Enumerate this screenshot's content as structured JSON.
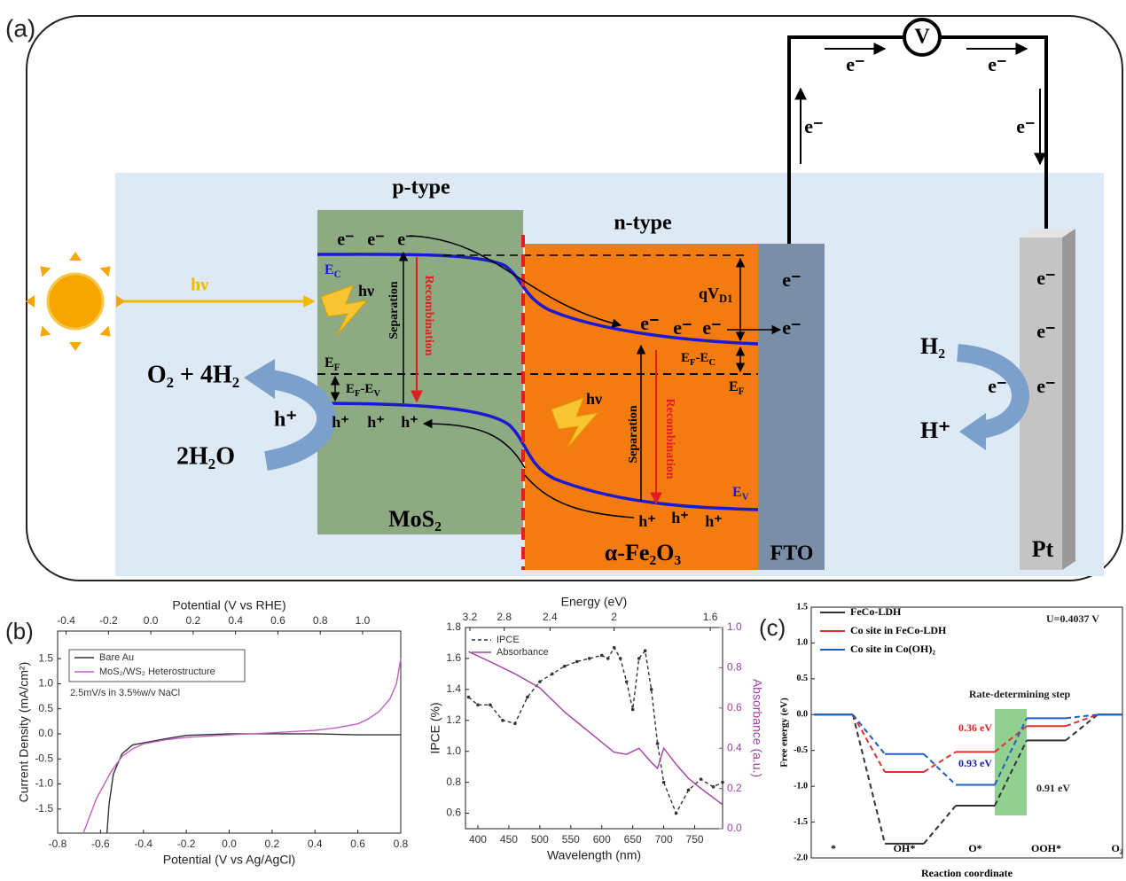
{
  "panel_a": {
    "label": "(a)",
    "voltmeter": "V",
    "labels": [
      "p-type",
      "n-type",
      "MoS₂",
      "α-Fe₂O₃",
      "FTO",
      "Pt",
      "hν",
      "hν",
      "hν",
      "O₂ + 4H₂",
      "h⁺",
      "2H₂O",
      "H₂",
      "H⁺",
      "Separation",
      "Recombination",
      "Separation",
      "Recombination",
      "e⁻",
      "e⁻",
      "e⁻",
      "e⁻",
      "e⁻",
      "e⁻",
      "e⁻",
      "e⁻",
      "e⁻",
      "e⁻",
      "e⁻",
      "e⁻",
      "e⁻",
      "e⁻",
      "e⁻",
      "e⁻",
      "h⁺",
      "h⁺",
      "h⁺",
      "h⁺",
      "h⁺",
      "h⁺"
    ],
    "sub_labels": [
      [
        "E",
        "C"
      ],
      [
        "E",
        "F"
      ],
      [
        "E",
        "F",
        "-E",
        "V"
      ],
      [
        "qV",
        "D1"
      ],
      [
        "E",
        "F",
        "-E",
        "C"
      ],
      [
        "E",
        "F"
      ],
      [
        "E",
        "V"
      ]
    ]
  },
  "chart_data": [
    {
      "type": "line",
      "panel_label": "(b)",
      "x_label": "Potential (V vs Ag/AgCl)",
      "x2_label": "Potential (V vs RHE)",
      "y_label": "Current Density (mA/cm²)",
      "annotation": "2.5mV/s in 3.5%w/v NaCl",
      "xlim": [
        -0.8,
        0.8
      ],
      "xticks": [
        -0.8,
        -0.6,
        -0.4,
        -0.2,
        {
          "value": 0,
          "label": "0.0"
        },
        0.2,
        0.4,
        0.6,
        0.8
      ],
      "x2lim": [
        -0.44,
        1.18
      ],
      "x2ticks": [
        -0.4,
        -0.2,
        {
          "value": 0,
          "label": "0.0"
        },
        0.2,
        0.4,
        0.6,
        0.8,
        {
          "value": 1,
          "label": "1.0"
        }
      ],
      "ylim": [
        -1.98,
        2.05
      ],
      "yticks": [
        -1.5,
        {
          "value": -1,
          "label": "-1.0"
        },
        -0.5,
        {
          "value": 0,
          "label": "0.0"
        },
        0.5,
        {
          "value": 1,
          "label": "1.0"
        },
        1.5
      ],
      "series": [
        {
          "name": "Bare Au",
          "color": "#333333",
          "x": [
            -0.57,
            -0.56,
            -0.54,
            -0.5,
            -0.45,
            -0.4,
            -0.3,
            -0.2,
            0,
            0.2,
            0.4,
            0.6,
            0.8
          ],
          "values": [
            -1.98,
            -1.4,
            -0.8,
            -0.4,
            -0.22,
            -0.18,
            -0.1,
            -0.03,
            0,
            0,
            0,
            -0.02,
            -0.02
          ]
        },
        {
          "name": "MoS₂/WS₂ Heterostructure",
          "color": "#c060c0",
          "x": [
            -0.68,
            -0.62,
            -0.55,
            -0.5,
            -0.45,
            -0.4,
            -0.3,
            -0.2,
            0,
            0.2,
            0.4,
            0.5,
            0.6,
            0.65,
            0.7,
            0.75,
            0.78,
            0.8
          ],
          "values": [
            -1.98,
            -1.3,
            -0.75,
            -0.45,
            -0.3,
            -0.2,
            -0.12,
            -0.07,
            -0.02,
            0.02,
            0.07,
            0.12,
            0.2,
            0.3,
            0.45,
            0.7,
            1.0,
            1.5
          ]
        }
      ]
    },
    {
      "type": "line",
      "x_label": "Wavelength (nm)",
      "x2_label": "Energy (eV)",
      "y_label": "IPCE (%)",
      "y2_label": "Absorbance (a.u.)",
      "xlim": [
        380,
        795
      ],
      "xticks": [
        400,
        450,
        500,
        550,
        600,
        650,
        700,
        750
      ],
      "x2lim": [
        3.26,
        1.56
      ],
      "x2scale": "reciprocal",
      "x2ticks": [
        3.2,
        2.8,
        2.4,
        2,
        1.6
      ],
      "ylim": [
        0.5,
        1.8
      ],
      "yticks": [
        0.6,
        0.8,
        {
          "value": 1,
          "label": "1.0"
        },
        1.2,
        1.4,
        1.6,
        1.8
      ],
      "y2lim": [
        0,
        1
      ],
      "y2ticks": [
        {
          "value": 0,
          "label": "0.0"
        },
        0.2,
        0.4,
        0.6,
        0.8,
        {
          "value": 1,
          "label": "1.0"
        }
      ],
      "y2color": "#a040a0",
      "series": [
        {
          "name": "IPCE",
          "color": "#333333",
          "dash": true,
          "markers": true,
          "x": [
            385,
            400,
            420,
            440,
            460,
            480,
            500,
            520,
            540,
            560,
            580,
            600,
            610,
            620,
            630,
            640,
            650,
            660,
            670,
            680,
            690,
            700,
            720,
            740,
            760,
            780,
            795
          ],
          "values": [
            1.35,
            1.3,
            1.3,
            1.2,
            1.18,
            1.35,
            1.45,
            1.5,
            1.55,
            1.58,
            1.6,
            1.62,
            1.6,
            1.67,
            1.6,
            1.45,
            1.27,
            1.6,
            1.65,
            1.4,
            1.05,
            0.8,
            0.6,
            0.75,
            0.82,
            0.77,
            0.8
          ]
        },
        {
          "name": "Absorbance",
          "color": "#a040a0",
          "axis": "y2",
          "x": [
            385,
            420,
            460,
            500,
            540,
            580,
            620,
            640,
            660,
            680,
            690,
            700,
            720,
            740,
            760,
            795
          ],
          "values": [
            0.88,
            0.83,
            0.77,
            0.7,
            0.58,
            0.48,
            0.38,
            0.37,
            0.4,
            0.33,
            0.3,
            0.4,
            0.32,
            0.25,
            0.2,
            0.12
          ]
        }
      ]
    },
    {
      "type": "step",
      "panel_label": "(c)",
      "x_label": "Reaction coordinate",
      "y_label": "Free energy (eV)",
      "annotations": [
        "U=0.4037 V",
        "Rate-determining step",
        "0.36 eV",
        "0.93 eV",
        "0.91 eV"
      ],
      "categories": [
        "*",
        "OH*",
        "O*",
        "OOH*",
        "O₂"
      ],
      "ylim": [
        -2,
        1.5
      ],
      "yticks": [
        {
          "value": -2,
          "label": "-2.0"
        },
        -1.5,
        {
          "value": -1,
          "label": "-1.0"
        },
        -0.5,
        {
          "value": 0,
          "label": "0.0"
        },
        0.5,
        {
          "value": 1,
          "label": "1.0"
        },
        1.5
      ],
      "series": [
        {
          "name": "FeCo-LDH",
          "color": "#333333",
          "values": [
            0,
            -1.8,
            -1.27,
            -0.36,
            0
          ]
        },
        {
          "name": "Co site in FeCo-LDH",
          "color": "#e03030",
          "values": [
            0,
            -0.8,
            -0.52,
            -0.16,
            0
          ]
        },
        {
          "name": "Co site in Co(OH)₂",
          "color": "#2060c0",
          "values": [
            0,
            -0.55,
            -0.98,
            -0.05,
            0
          ]
        }
      ]
    }
  ]
}
